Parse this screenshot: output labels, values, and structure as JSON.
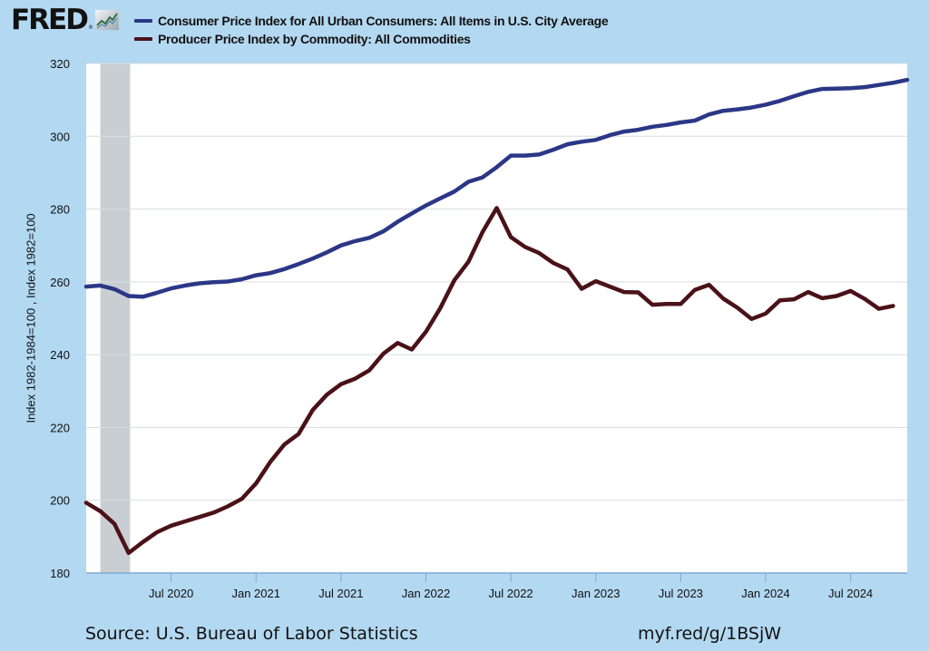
{
  "header": {
    "logo_text": "FRED",
    "logo_reg": "®",
    "logo_icon": "fred-chart-icon"
  },
  "footer": {
    "source": "Source: U.S. Bureau of Labor Statistics",
    "link": "myf.red/g/1BSjW"
  },
  "chart_data": {
    "type": "line",
    "title": "",
    "xlabel": "",
    "ylabel": "Index 1982-1984=100 , Index 1982=100",
    "ylim": [
      180,
      320
    ],
    "yticks": [
      180,
      200,
      220,
      240,
      260,
      280,
      300,
      320
    ],
    "xlim": [
      "2020-01",
      "2024-11"
    ],
    "xticks": [
      {
        "date": "2020-07",
        "label": "Jul 2020"
      },
      {
        "date": "2021-01",
        "label": "Jan 2021"
      },
      {
        "date": "2021-07",
        "label": "Jul 2021"
      },
      {
        "date": "2022-01",
        "label": "Jan 2022"
      },
      {
        "date": "2022-07",
        "label": "Jul 2022"
      },
      {
        "date": "2023-01",
        "label": "Jan 2023"
      },
      {
        "date": "2023-07",
        "label": "Jul 2023"
      },
      {
        "date": "2024-01",
        "label": "Jan 2024"
      },
      {
        "date": "2024-07",
        "label": "Jul 2024"
      }
    ],
    "grid": true,
    "legend_position": "top",
    "recessions": [
      {
        "start": "2020-02",
        "end": "2020-04"
      }
    ],
    "start_month": "2020-01",
    "series": [
      {
        "name": "Consumer Price Index for All Urban Consumers: All Items in U.S. City Average",
        "color": "#2b3786",
        "values": [
          258.7,
          259.0,
          258.0,
          256.1,
          255.9,
          257.0,
          258.2,
          259.0,
          259.6,
          259.9,
          260.1,
          260.7,
          261.8,
          262.4,
          263.5,
          264.9,
          266.4,
          268.1,
          270.0,
          271.2,
          272.1,
          273.9,
          276.5,
          278.8,
          281.0,
          282.9,
          284.8,
          287.5,
          288.7,
          291.5,
          294.7,
          294.7,
          295.0,
          296.3,
          297.8,
          298.5,
          299.0,
          300.3,
          301.3,
          301.8,
          302.6,
          303.1,
          303.8,
          304.3,
          306.0,
          307.0,
          307.4,
          307.9,
          308.7,
          309.7,
          311.0,
          312.2,
          313.0,
          313.1,
          313.2,
          313.5,
          314.1,
          314.7,
          315.5
        ]
      },
      {
        "name": "Producer Price Index by Commodity: All Commodities",
        "color": "#4a1218",
        "values": [
          199.3,
          197.0,
          193.5,
          185.5,
          188.5,
          191.2,
          193.0,
          194.2,
          195.4,
          196.6,
          198.3,
          200.4,
          204.6,
          210.5,
          215.3,
          218.2,
          224.8,
          229.0,
          231.9,
          233.4,
          235.7,
          240.3,
          243.2,
          241.4,
          246.3,
          252.7,
          260.4,
          265.5,
          273.7,
          280.3,
          272.3,
          269.6,
          267.9,
          265.2,
          263.4,
          258.1,
          260.2,
          258.7,
          257.2,
          257.1,
          253.7,
          253.9,
          253.9,
          257.8,
          259.2,
          255.4,
          252.9,
          249.8,
          251.3,
          254.9,
          255.2,
          257.2,
          255.5,
          256.1,
          257.5,
          255.3,
          252.6,
          253.4
        ]
      }
    ]
  }
}
